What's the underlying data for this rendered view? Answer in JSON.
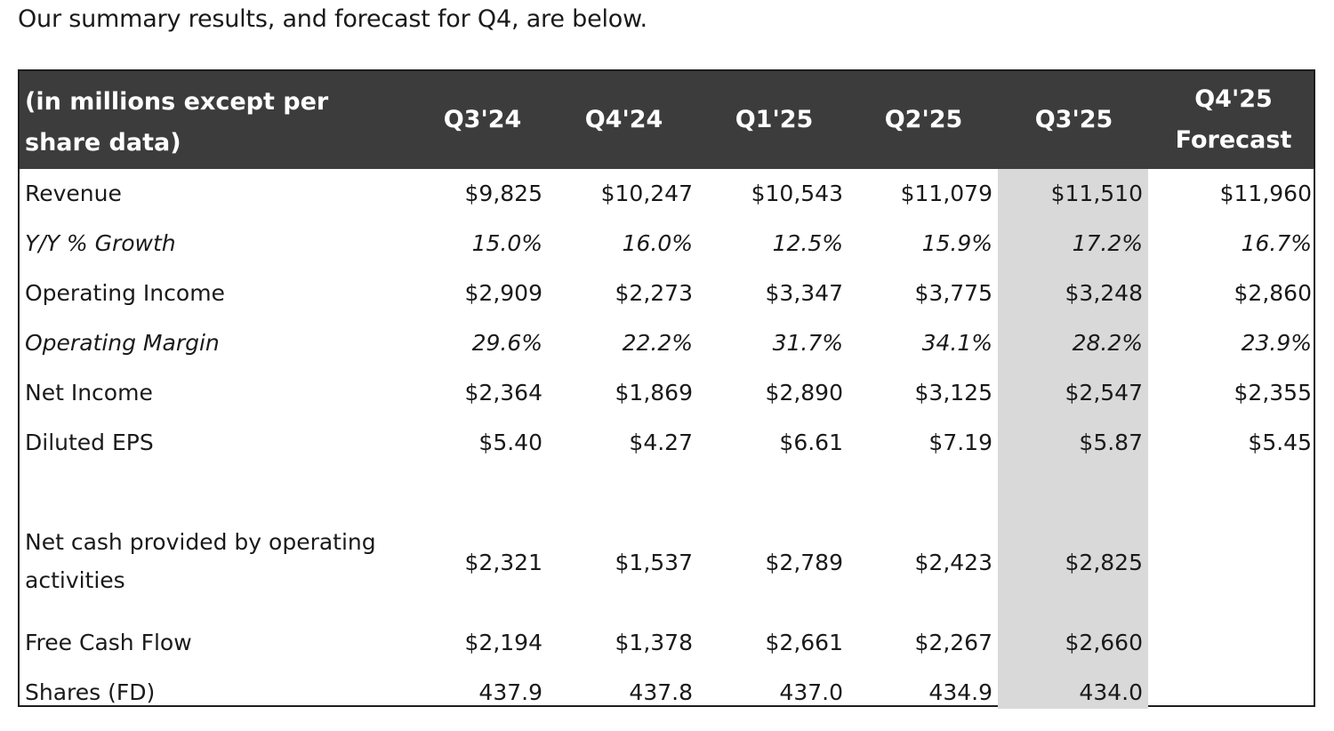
{
  "intro_text": "Our summary results, and forecast for Q4, are below.",
  "table": {
    "header_label": "(in millions except per share data)",
    "columns": [
      "Q3'24",
      "Q4'24",
      "Q1'25",
      "Q2'25",
      "Q3'25",
      "Q4'25 Forecast"
    ],
    "highlight_column": "Q3'25",
    "colors": {
      "header_bg": "#3c3c3c",
      "header_text": "#ffffff",
      "highlight_bg": "#d9d9d9"
    },
    "rows": [
      {
        "label": "Revenue",
        "italic": false,
        "values": [
          "$9,825",
          "$10,247",
          "$10,543",
          "$11,079",
          "$11,510",
          "$11,960"
        ]
      },
      {
        "label": "Y/Y % Growth",
        "italic": true,
        "values": [
          "15.0%",
          "16.0%",
          "12.5%",
          "15.9%",
          "17.2%",
          "16.7%"
        ]
      },
      {
        "label": "Operating Income",
        "italic": false,
        "values": [
          "$2,909",
          "$2,273",
          "$3,347",
          "$3,775",
          "$3,248",
          "$2,860"
        ]
      },
      {
        "label": "Operating Margin",
        "italic": true,
        "values": [
          "29.6%",
          "22.2%",
          "31.7%",
          "34.1%",
          "28.2%",
          "23.9%"
        ]
      },
      {
        "label": "Net Income",
        "italic": false,
        "values": [
          "$2,364",
          "$1,869",
          "$2,890",
          "$3,125",
          "$2,547",
          "$2,355"
        ]
      },
      {
        "label": "Diluted EPS",
        "italic": false,
        "values": [
          "$5.40",
          "$4.27",
          "$6.61",
          "$7.19",
          "$5.87",
          "$5.45"
        ]
      },
      {
        "label": "Net cash provided by operating activities",
        "italic": false,
        "values": [
          "$2,321",
          "$1,537",
          "$2,789",
          "$2,423",
          "$2,825",
          ""
        ]
      },
      {
        "label": "Free Cash Flow",
        "italic": false,
        "values": [
          "$2,194",
          "$1,378",
          "$2,661",
          "$2,267",
          "$2,660",
          ""
        ]
      },
      {
        "label": "Shares (FD)",
        "italic": false,
        "values": [
          "437.9",
          "437.8",
          "437.0",
          "434.9",
          "434.0",
          ""
        ]
      }
    ]
  }
}
